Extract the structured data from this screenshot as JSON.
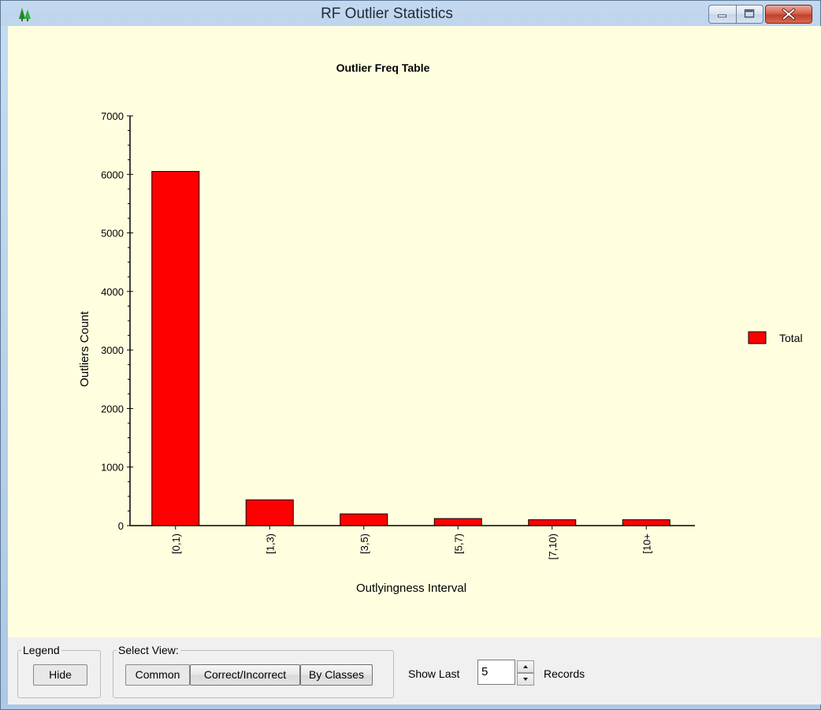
{
  "window": {
    "title": "RF Outlier Statistics",
    "icon": "tree-icon"
  },
  "chart_data": {
    "type": "bar",
    "title": "Outlier Freq Table",
    "xlabel": "Outlyingness Interval",
    "ylabel": "Outliers Count",
    "categories": [
      "[0,1)",
      "[1,3)",
      "[3,5)",
      "[5,7)",
      "[7,10)",
      "[10+"
    ],
    "series": [
      {
        "name": "Total",
        "values": [
          6050,
          440,
          200,
          120,
          100,
          100
        ],
        "color": "#ff0000"
      }
    ],
    "ylim": [
      0,
      7000
    ],
    "yticks": [
      0,
      1000,
      2000,
      3000,
      4000,
      5000,
      6000,
      7000
    ],
    "grid": false,
    "legend_position": "right",
    "background": "#ffffe0"
  },
  "controls": {
    "legend_group_label": "Legend",
    "legend_button": "Hide",
    "view_group_label": "Select View:",
    "view_buttons": [
      "Common",
      "Correct/Incorrect",
      "By Classes"
    ],
    "show_last_label": "Show Last",
    "records_value": "5",
    "records_label": "Records"
  }
}
